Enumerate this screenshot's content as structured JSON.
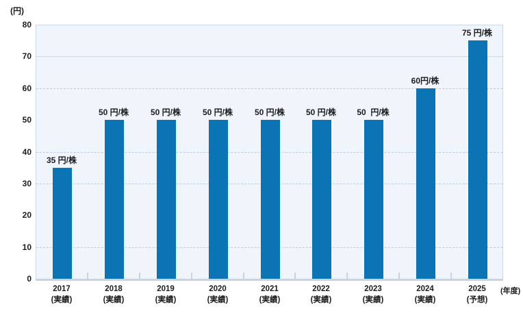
{
  "colors": {
    "background": "#ffffff",
    "plot-bg": "#eff5fb",
    "bar": "#0b74b4",
    "grid-solid": "#ccd8e3",
    "grid-dashed": "#b9cbdc",
    "axis": "#c6d4e2",
    "text": "#1c1c1c"
  },
  "chart_data": {
    "type": "bar",
    "title": "",
    "ylabel": "(円)",
    "xlabel": "(年度)",
    "ylim": [
      0,
      80
    ],
    "yticks": [
      0,
      10,
      20,
      30,
      40,
      50,
      60,
      70,
      80
    ],
    "gridlines": [
      {
        "value": 80,
        "style": "solid"
      },
      {
        "value": 70,
        "style": "solid"
      },
      {
        "value": 60,
        "style": "dashed"
      },
      {
        "value": 40,
        "style": "dashed"
      },
      {
        "value": 30,
        "style": "dashed"
      },
      {
        "value": 10,
        "style": "dashed"
      }
    ],
    "legend": "none",
    "categories": [
      {
        "year": "2017",
        "status": "(実績)"
      },
      {
        "year": "2018",
        "status": "(実績)"
      },
      {
        "year": "2019",
        "status": "(実績)"
      },
      {
        "year": "2020",
        "status": "(実績)"
      },
      {
        "year": "2021",
        "status": "(実績)"
      },
      {
        "year": "2022",
        "status": "(実績)"
      },
      {
        "year": "2023",
        "status": "(実績)"
      },
      {
        "year": "2024",
        "status": "(実績)"
      },
      {
        "year": "2025",
        "status": "(予想)"
      }
    ],
    "values": [
      35,
      50,
      50,
      50,
      50,
      50,
      50,
      60,
      75
    ],
    "bar_labels": [
      "35 円/株",
      "50 円/株",
      "50 円/株",
      "50 円/株",
      "50 円/株",
      "50 円/株",
      "50  円/株",
      "60円/株",
      "75 円/株"
    ]
  }
}
